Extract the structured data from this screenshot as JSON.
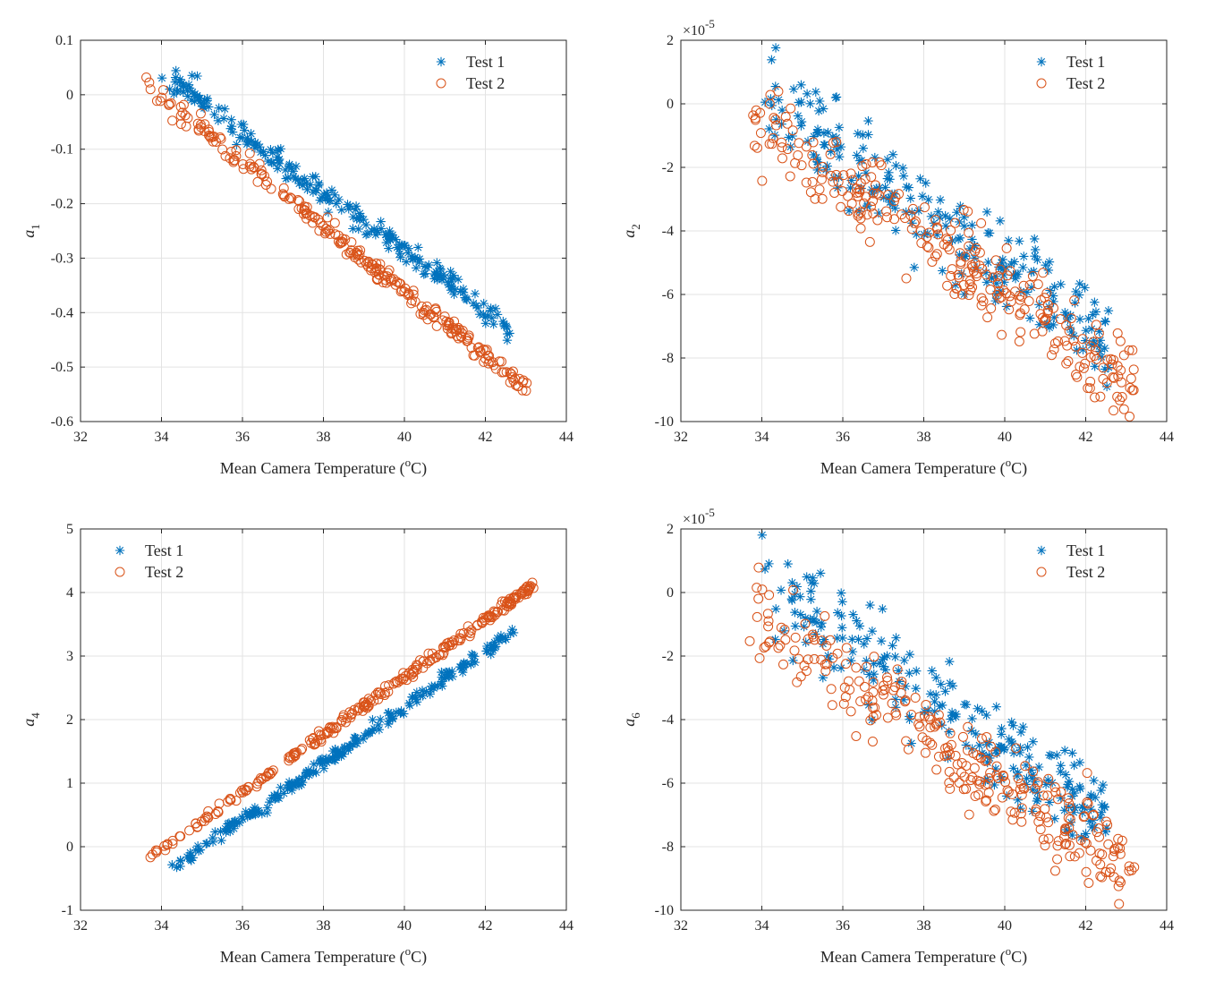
{
  "chart_data": [
    {
      "type": "scatter",
      "title": "",
      "xlabel_prefix": "Mean Camera Temperature (",
      "xlabel_sup": "o",
      "xlabel_suffix": "C)",
      "ylabel_main": "a",
      "ylabel_sub": "1",
      "xlim": [
        32,
        44
      ],
      "ylim": [
        -0.6,
        0.1
      ],
      "x_ticks": [
        32,
        34,
        36,
        38,
        40,
        42,
        44
      ],
      "y_ticks": [
        -0.6,
        -0.5,
        -0.4,
        -0.3,
        -0.2,
        -0.1,
        0,
        0.1
      ],
      "x_tick_labels": [
        "32",
        "34",
        "36",
        "38",
        "40",
        "42",
        "44"
      ],
      "y_tick_labels": [
        "-0.6",
        "-0.5",
        "-0.4",
        "-0.3",
        "-0.2",
        "-0.1",
        "0",
        "0.1"
      ],
      "exponent": "",
      "grid": true,
      "legend_position": "top-right",
      "series": [
        {
          "name": "Test 1",
          "marker": "asterisk",
          "color": "#0072BD",
          "x_range": [
            34.0,
            42.6
          ],
          "y_at_start": 0.04,
          "y_at_end": -0.43,
          "noise": 0.012,
          "count": 240,
          "seed": 11
        },
        {
          "name": "Test 2",
          "marker": "circle",
          "color": "#D95319",
          "x_range": [
            33.6,
            43.1
          ],
          "y_at_start": 0.02,
          "y_at_end": -0.545,
          "noise": 0.009,
          "count": 260,
          "seed": 21
        }
      ]
    },
    {
      "type": "scatter",
      "title": "",
      "xlabel_prefix": "Mean Camera Temperature (",
      "xlabel_sup": "o",
      "xlabel_suffix": "C)",
      "ylabel_main": "a",
      "ylabel_sub": "2",
      "xlim": [
        32,
        44
      ],
      "ylim": [
        -10,
        2
      ],
      "x_ticks": [
        32,
        34,
        36,
        38,
        40,
        42,
        44
      ],
      "y_ticks": [
        -10,
        -8,
        -6,
        -4,
        -2,
        0,
        2
      ],
      "x_tick_labels": [
        "32",
        "34",
        "36",
        "38",
        "40",
        "42",
        "44"
      ],
      "y_tick_labels": [
        "-10",
        "-8",
        "-6",
        "-4",
        "-2",
        "0",
        "2"
      ],
      "exponent": "×10",
      "exponent_power": "-5",
      "grid": true,
      "legend_position": "top-right",
      "series": [
        {
          "name": "Test 1",
          "marker": "asterisk",
          "color": "#0072BD",
          "x_range": [
            34.0,
            42.6
          ],
          "y_at_start": 0.3,
          "y_at_end": -7.6,
          "noise": 0.75,
          "count": 240,
          "seed": 31
        },
        {
          "name": "Test 2",
          "marker": "circle",
          "color": "#D95319",
          "x_range": [
            33.6,
            43.2
          ],
          "y_at_start": -0.3,
          "y_at_end": -8.9,
          "noise": 0.7,
          "count": 280,
          "seed": 41
        }
      ]
    },
    {
      "type": "scatter",
      "title": "",
      "xlabel_prefix": "Mean Camera Temperature (",
      "xlabel_sup": "o",
      "xlabel_suffix": "C)",
      "ylabel_main": "a",
      "ylabel_sub": "4",
      "xlim": [
        32,
        44
      ],
      "ylim": [
        -1,
        5
      ],
      "x_ticks": [
        32,
        34,
        36,
        38,
        40,
        42,
        44
      ],
      "y_ticks": [
        -1,
        0,
        1,
        2,
        3,
        4,
        5
      ],
      "x_tick_labels": [
        "32",
        "34",
        "36",
        "38",
        "40",
        "42",
        "44"
      ],
      "y_tick_labels": [
        "-1",
        "0",
        "1",
        "2",
        "3",
        "4",
        "5"
      ],
      "exponent": "",
      "grid": true,
      "legend_position": "top-left",
      "series": [
        {
          "name": "Test 1",
          "marker": "asterisk",
          "color": "#0072BD",
          "x_range": [
            34.2,
            42.7
          ],
          "y_at_start": -0.38,
          "y_at_end": 3.4,
          "noise": 0.05,
          "count": 240,
          "seed": 51
        },
        {
          "name": "Test 2",
          "marker": "circle",
          "color": "#D95319",
          "x_range": [
            33.7,
            43.2
          ],
          "y_at_start": -0.18,
          "y_at_end": 4.12,
          "noise": 0.04,
          "count": 260,
          "seed": 61
        }
      ]
    },
    {
      "type": "scatter",
      "title": "",
      "xlabel_prefix": "Mean Camera Temperature (",
      "xlabel_sup": "o",
      "xlabel_suffix": "C)",
      "ylabel_main": "a",
      "ylabel_sub": "6",
      "xlim": [
        32,
        44
      ],
      "ylim": [
        -10,
        2
      ],
      "x_ticks": [
        32,
        34,
        36,
        38,
        40,
        42,
        44
      ],
      "y_ticks": [
        -10,
        -8,
        -6,
        -4,
        -2,
        0,
        2
      ],
      "x_tick_labels": [
        "32",
        "34",
        "36",
        "38",
        "40",
        "42",
        "44"
      ],
      "y_tick_labels": [
        "-10",
        "-8",
        "-6",
        "-4",
        "-2",
        "0",
        "2"
      ],
      "exponent": "×10",
      "exponent_power": "-5",
      "grid": true,
      "legend_position": "top-right",
      "series": [
        {
          "name": "Test 1",
          "marker": "asterisk",
          "color": "#0072BD",
          "x_range": [
            34.0,
            42.6
          ],
          "y_at_start": 0.5,
          "y_at_end": -7.3,
          "noise": 0.75,
          "count": 240,
          "seed": 71
        },
        {
          "name": "Test 2",
          "marker": "circle",
          "color": "#D95319",
          "x_range": [
            33.6,
            43.2
          ],
          "y_at_start": -0.6,
          "y_at_end": -8.8,
          "noise": 0.7,
          "count": 280,
          "seed": 81
        }
      ]
    }
  ]
}
